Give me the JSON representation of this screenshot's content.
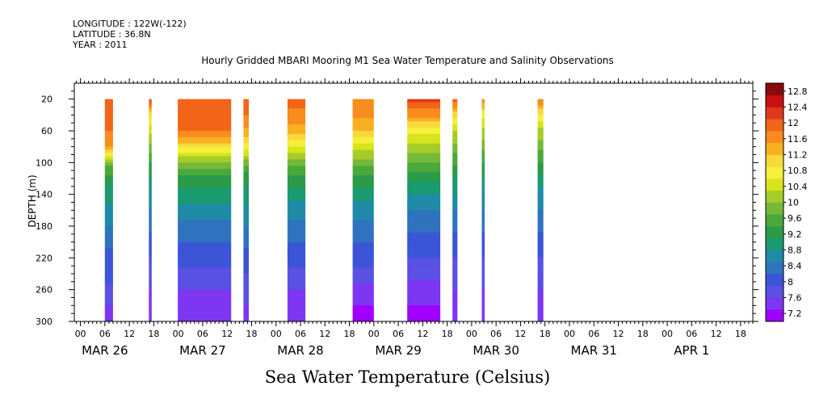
{
  "header": {
    "longitude": "LONGITUDE : 122W(-122)",
    "latitude": "LATITUDE : 36.8N",
    "year": "YEAR : 2011"
  },
  "chart_data": {
    "type": "heatmap",
    "title": "Hourly Gridded MBARI Mooring M1 Sea Water Temperature and Salinity Observations",
    "subtitle": "Sea Water Temperature (Celsius)",
    "xlabel": "",
    "ylabel": "DEPTH (m)",
    "ylim": [
      300,
      0
    ],
    "ytick_labels": [
      "20",
      "60",
      "100",
      "140",
      "180",
      "220",
      "260",
      "300"
    ],
    "ytick_values": [
      20,
      60,
      100,
      140,
      180,
      220,
      260,
      300
    ],
    "xtick_hour_labels": [
      "00",
      "06",
      "12",
      "18",
      "00",
      "06",
      "12",
      "18",
      "00",
      "06",
      "12",
      "18",
      "00",
      "06",
      "12",
      "18",
      "00",
      "06",
      "12",
      "18",
      "00",
      "06",
      "12",
      "18",
      "00",
      "06",
      "12",
      "18"
    ],
    "xtick_hours": [
      0,
      6,
      12,
      18,
      24,
      30,
      36,
      42,
      48,
      54,
      60,
      66,
      72,
      78,
      84,
      90,
      96,
      102,
      108,
      114,
      120,
      126,
      132,
      138,
      144,
      150,
      156,
      162
    ],
    "day_labels": [
      "MAR 26",
      "MAR 27",
      "MAR 28",
      "MAR 29",
      "MAR 30",
      "MAR 31",
      "APR  1"
    ],
    "x_range_hours_from_mar26_00": [
      -1.5,
      165
    ],
    "colorbar_labels": [
      "12.8",
      "12.4",
      "12",
      "11.6",
      "11.2",
      "10.8",
      "10.4",
      "10",
      "9.6",
      "9.2",
      "8.8",
      "8.4",
      "8",
      "7.6",
      "7.2"
    ],
    "colorbar_range": [
      7.0,
      13.0
    ],
    "colorbar_step": 0.2,
    "colors": {
      "palette": [
        "#a000ff",
        "#7d36f2",
        "#5a50e4",
        "#3b55d6",
        "#2f73be",
        "#1f8ba6",
        "#1a9a70",
        "#2a9b48",
        "#4ba83a",
        "#76b93a",
        "#a6cc2a",
        "#d8e41c",
        "#f4f03c",
        "#f8d83a",
        "#f8b020",
        "#f88c1c",
        "#f26418",
        "#e03818",
        "#c81010",
        "#8a0a0a"
      ]
    },
    "depth_profile_note": "temperature by depth within each observation block",
    "depths": [
      20,
      40,
      60,
      80,
      100,
      120,
      140,
      160,
      180,
      200,
      220,
      240,
      260,
      280,
      300
    ],
    "segments": [
      {
        "start": 6.0,
        "end": 8.0,
        "temps": [
          11.9,
          11.9,
          11.8,
          11.5,
          9.9,
          9.2,
          8.9,
          8.7,
          8.5,
          8.3,
          8.1,
          8.0,
          7.8,
          7.6,
          7.4
        ]
      },
      {
        "start": 16.8,
        "end": 17.5,
        "temps": [
          12.2,
          11.0,
          10.4,
          9.9,
          9.4,
          9.0,
          8.7,
          8.5,
          8.3,
          8.1,
          7.9,
          7.8,
          7.6,
          7.5,
          7.4
        ]
      },
      {
        "start": 23.9,
        "end": 37.0,
        "temps": [
          12.0,
          12.0,
          11.8,
          11.0,
          9.9,
          9.3,
          9.0,
          8.7,
          8.4,
          8.2,
          8.0,
          7.8,
          7.6,
          7.4,
          7.3
        ]
      },
      {
        "start": 40.0,
        "end": 41.3,
        "temps": [
          12.1,
          11.8,
          11.4,
          10.8,
          9.8,
          9.2,
          8.9,
          8.7,
          8.5,
          8.3,
          8.1,
          7.9,
          7.8,
          7.6,
          7.5
        ]
      },
      {
        "start": 50.8,
        "end": 55.2,
        "temps": [
          11.9,
          11.7,
          11.4,
          10.6,
          9.8,
          9.3,
          8.9,
          8.6,
          8.4,
          8.2,
          8.0,
          7.8,
          7.6,
          7.4,
          7.3
        ]
      },
      {
        "start": 66.8,
        "end": 72.0,
        "temps": [
          11.8,
          11.6,
          11.2,
          10.5,
          9.8,
          9.3,
          8.9,
          8.6,
          8.4,
          8.2,
          8.0,
          7.8,
          7.5,
          7.3,
          7.2
        ]
      },
      {
        "start": 80.2,
        "end": 88.3,
        "temps": [
          12.2,
          11.6,
          10.7,
          10.2,
          9.7,
          9.2,
          8.8,
          8.5,
          8.3,
          8.1,
          7.9,
          7.7,
          7.5,
          7.3,
          7.2
        ]
      },
      {
        "start": 91.3,
        "end": 92.5,
        "temps": [
          12.0,
          11.0,
          10.3,
          9.9,
          9.5,
          9.1,
          8.8,
          8.5,
          8.3,
          8.1,
          7.9,
          7.7,
          7.6,
          7.4,
          7.3
        ]
      },
      {
        "start": 98.5,
        "end": 99.2,
        "temps": [
          11.8,
          10.7,
          10.2,
          9.8,
          9.4,
          9.0,
          8.7,
          8.5,
          8.3,
          8.1,
          7.9,
          7.8,
          7.6,
          7.5,
          7.4
        ]
      },
      {
        "start": 112.2,
        "end": 113.6,
        "temps": [
          11.8,
          10.8,
          10.2,
          9.8,
          9.4,
          9.0,
          8.7,
          8.5,
          8.3,
          8.1,
          7.9,
          7.7,
          7.6,
          7.4,
          7.3
        ]
      }
    ]
  }
}
